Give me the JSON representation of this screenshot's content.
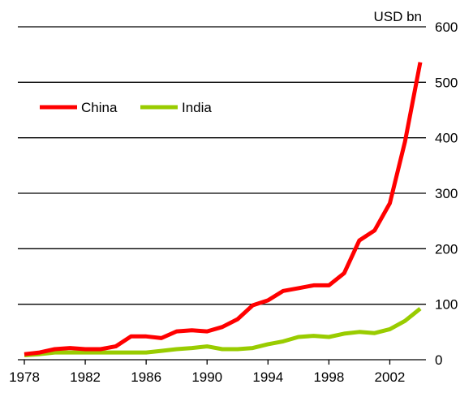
{
  "chart_data": {
    "type": "line",
    "unit_label": "USD bn",
    "ylim": [
      0,
      600
    ],
    "y_ticks": [
      "0",
      "100",
      "200",
      "300",
      "400",
      "500",
      "600"
    ],
    "xlim": [
      1978,
      2004
    ],
    "x_ticks": [
      "1978",
      "1982",
      "1986",
      "1990",
      "1994",
      "1998",
      "2002"
    ],
    "grid": true,
    "legend_placement": "top-left",
    "x": [
      1978,
      1979,
      1980,
      1981,
      1982,
      1983,
      1984,
      1985,
      1986,
      1987,
      1988,
      1989,
      1990,
      1991,
      1992,
      1993,
      1994,
      1995,
      1996,
      1997,
      1998,
      1999,
      2000,
      2001,
      2002,
      2003,
      2004
    ],
    "series": [
      {
        "name": "China",
        "color": "#ff0000",
        "values": [
          10,
          13,
          19,
          21,
          19,
          19,
          24,
          42,
          42,
          39,
          51,
          53,
          51,
          59,
          73,
          98,
          107,
          124,
          129,
          134,
          134,
          156,
          215,
          233,
          282,
          393,
          536
        ]
      },
      {
        "name": "India",
        "color": "#99cc00",
        "values": [
          8,
          10,
          13,
          13,
          13,
          13,
          13,
          13,
          13,
          16,
          19,
          21,
          24,
          19,
          19,
          21,
          28,
          33,
          41,
          43,
          41,
          47,
          50,
          48,
          55,
          70,
          92
        ]
      }
    ]
  }
}
